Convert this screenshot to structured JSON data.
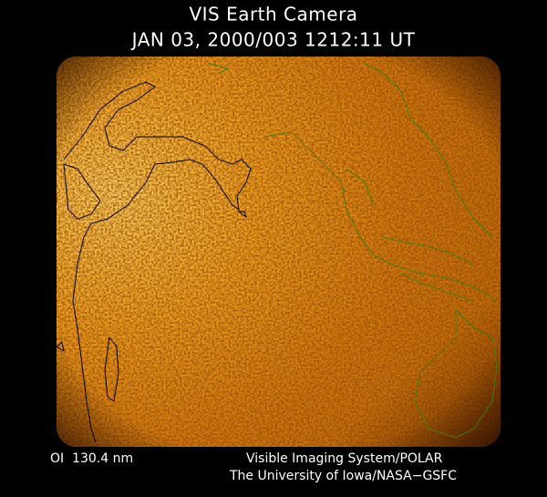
{
  "header": {
    "title": "VIS Earth Camera",
    "timestamp": "JAN 03, 2000/003 1212:11 UT"
  },
  "footer": {
    "wavelength": "OI  130.4 nm",
    "instrument": "Visible Imaging System/POLAR",
    "credit": "The University of Iowa/NASA−GSFC"
  }
}
